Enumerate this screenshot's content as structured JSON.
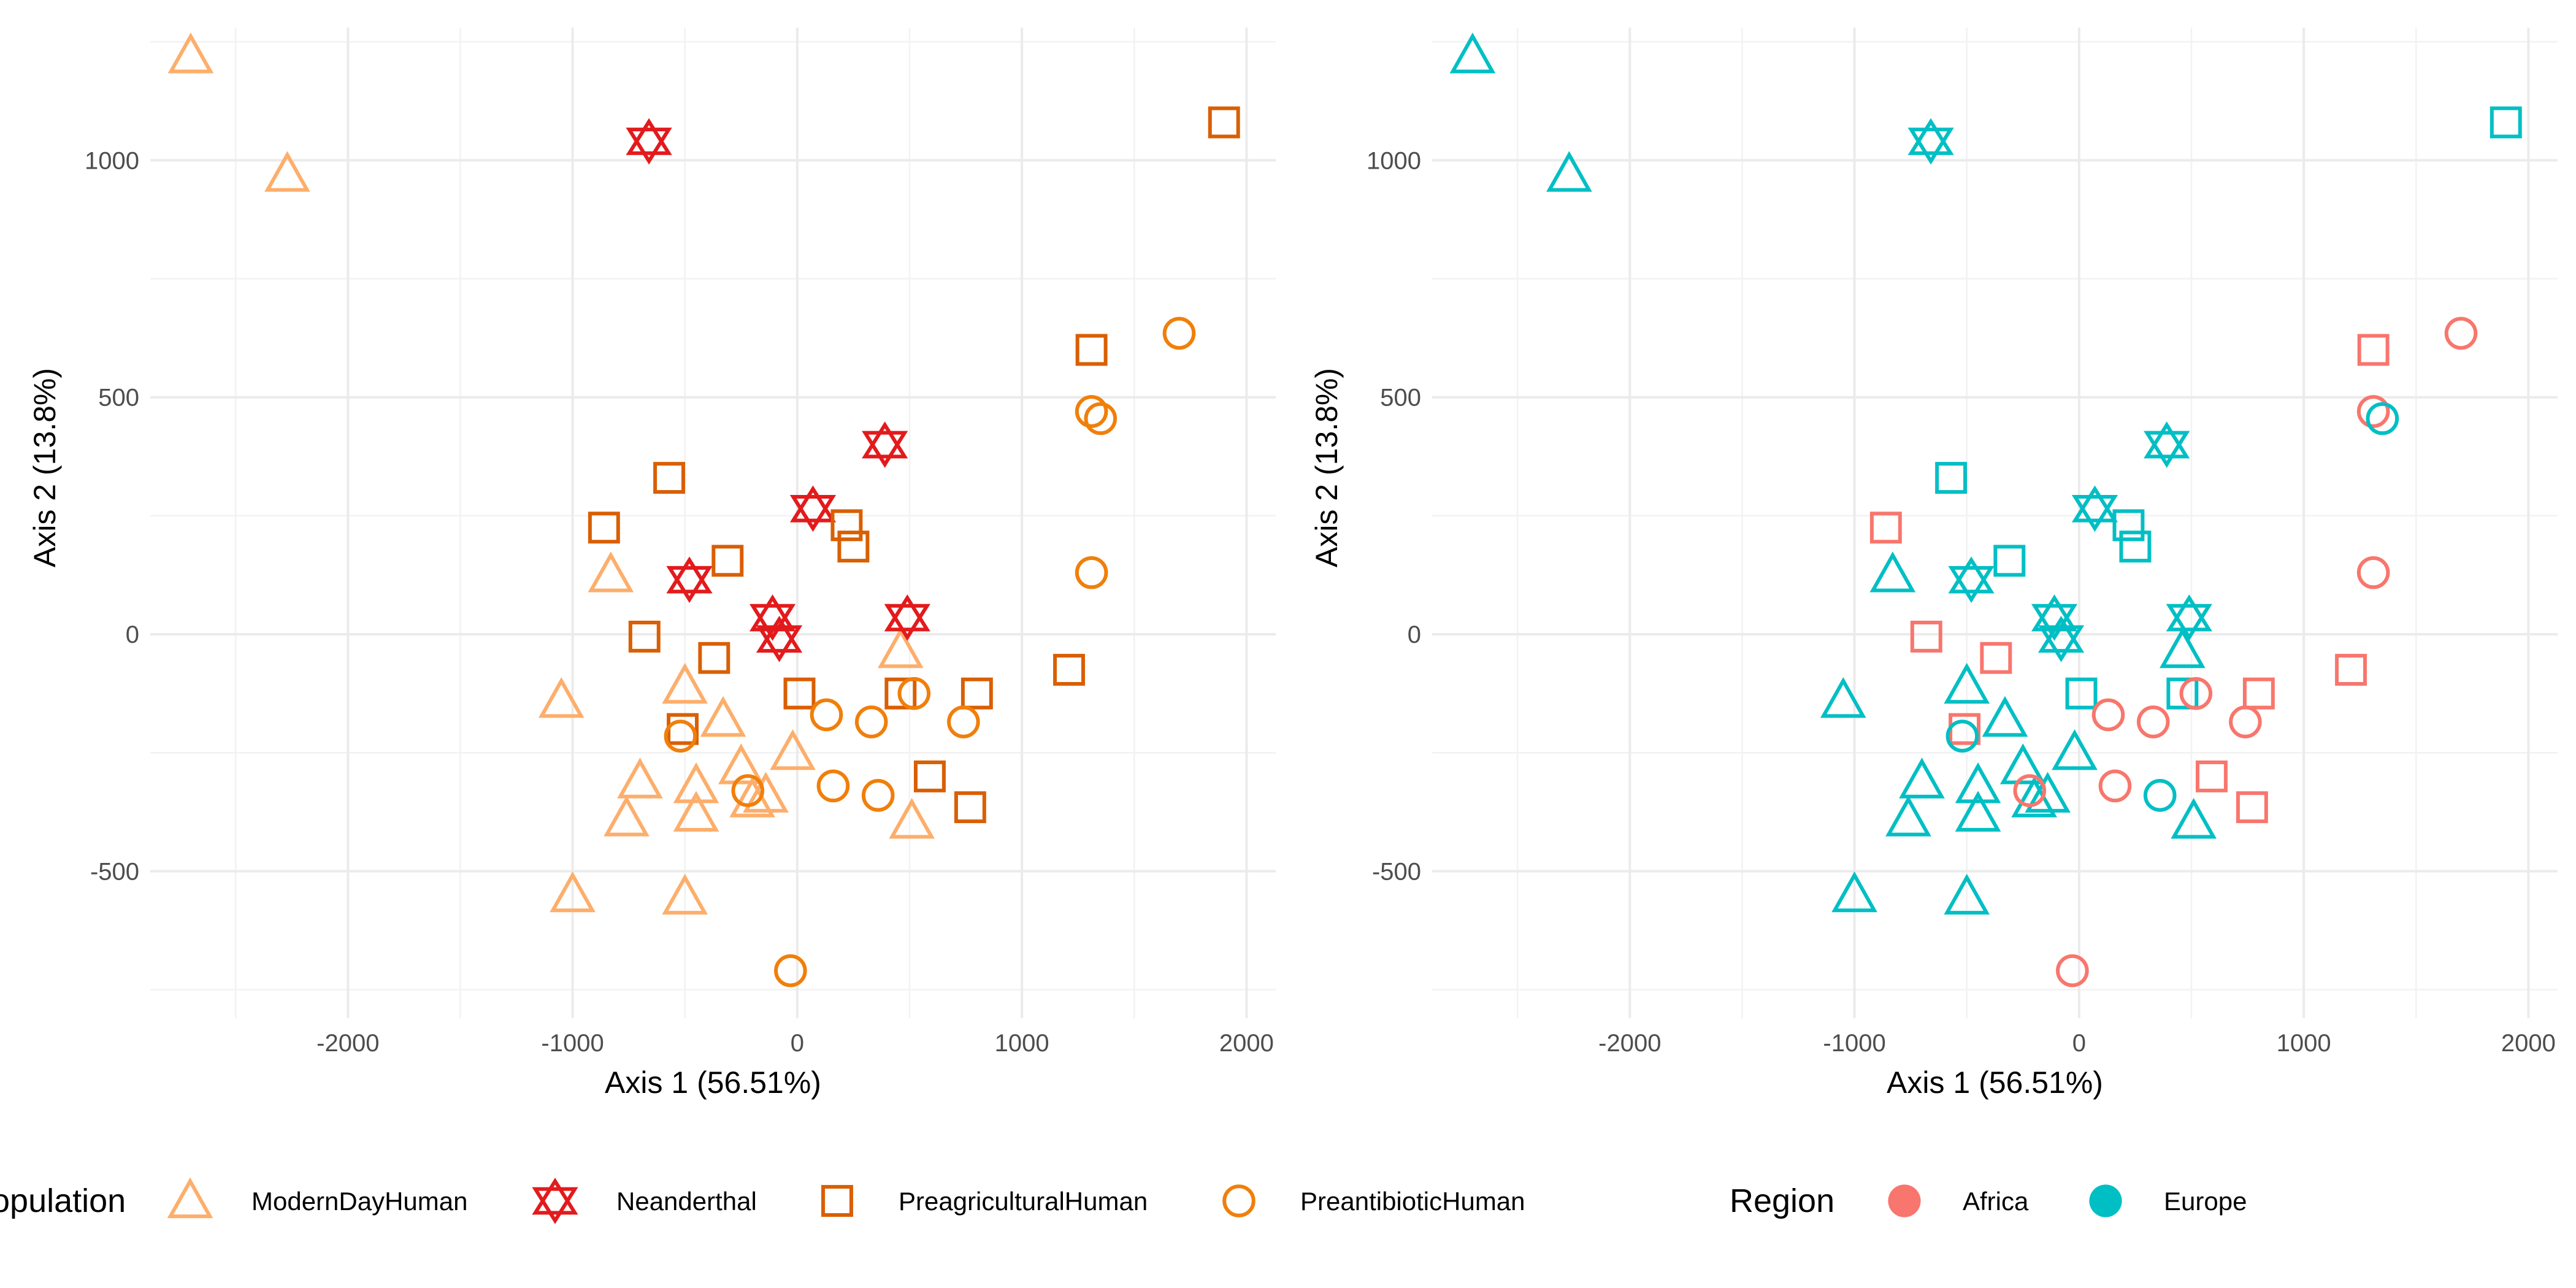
{
  "chart_data": [
    {
      "type": "scatter",
      "xlabel": "Axis 1 (56.51%)",
      "ylabel": "Axis 2 (13.8%)",
      "xlim": [
        -2880,
        2130
      ],
      "ylim": [
        -810,
        1280
      ],
      "xticks": [
        -2000,
        -1000,
        0,
        1000,
        2000
      ],
      "yticks": [
        -500,
        0,
        500,
        1000
      ],
      "grid": true,
      "color_by": "population",
      "shape_by": "population",
      "legend": {
        "title": "Population",
        "position": "bottom",
        "entries": [
          {
            "label": "ModernDayHuman",
            "shape": "triangle",
            "color": "#FDAE6B"
          },
          {
            "label": "Neanderthal",
            "shape": "star6",
            "color": "#E31A1C"
          },
          {
            "label": "PreagriculturalHuman",
            "shape": "square",
            "color": "#D95F02"
          },
          {
            "label": "PreantibioticHuman",
            "shape": "circle",
            "color": "#F07F0B"
          }
        ]
      }
    },
    {
      "type": "scatter",
      "xlabel": "Axis 1 (56.51%)",
      "ylabel": "Axis 2 (13.8%)",
      "xlim": [
        -2880,
        2130
      ],
      "ylim": [
        -810,
        1280
      ],
      "xticks": [
        -2000,
        -1000,
        0,
        1000,
        2000
      ],
      "yticks": [
        -500,
        0,
        500,
        1000
      ],
      "grid": true,
      "color_by": "region",
      "shape_by": "population",
      "legend": {
        "title": "Region",
        "position": "bottom",
        "entries": [
          {
            "label": "Africa",
            "shape": "filled-circle",
            "color": "#F8766D"
          },
          {
            "label": "Europe",
            "shape": "filled-circle",
            "color": "#00BFC4"
          }
        ]
      }
    }
  ],
  "points": [
    {
      "x": -2700,
      "y": 1220,
      "population": "ModernDayHuman",
      "region": "Europe"
    },
    {
      "x": -2270,
      "y": 970,
      "population": "ModernDayHuman",
      "region": "Europe"
    },
    {
      "x": -830,
      "y": 125,
      "population": "ModernDayHuman",
      "region": "Europe"
    },
    {
      "x": -1050,
      "y": -140,
      "population": "ModernDayHuman",
      "region": "Europe"
    },
    {
      "x": -700,
      "y": -310,
      "population": "ModernDayHuman",
      "region": "Europe"
    },
    {
      "x": -760,
      "y": -390,
      "population": "ModernDayHuman",
      "region": "Europe"
    },
    {
      "x": -500,
      "y": -110,
      "population": "ModernDayHuman",
      "region": "Europe"
    },
    {
      "x": -330,
      "y": -180,
      "population": "ModernDayHuman",
      "region": "Europe"
    },
    {
      "x": -450,
      "y": -320,
      "population": "ModernDayHuman",
      "region": "Europe"
    },
    {
      "x": -450,
      "y": -380,
      "population": "ModernDayHuman",
      "region": "Europe"
    },
    {
      "x": -250,
      "y": -280,
      "population": "ModernDayHuman",
      "region": "Europe"
    },
    {
      "x": -200,
      "y": -350,
      "population": "ModernDayHuman",
      "region": "Europe"
    },
    {
      "x": -140,
      "y": -340,
      "population": "ModernDayHuman",
      "region": "Europe"
    },
    {
      "x": -20,
      "y": -250,
      "population": "ModernDayHuman",
      "region": "Europe"
    },
    {
      "x": 460,
      "y": -35,
      "population": "ModernDayHuman",
      "region": "Europe"
    },
    {
      "x": 510,
      "y": -395,
      "population": "ModernDayHuman",
      "region": "Europe"
    },
    {
      "x": -1000,
      "y": -550,
      "population": "ModernDayHuman",
      "region": "Europe"
    },
    {
      "x": -500,
      "y": -555,
      "population": "ModernDayHuman",
      "region": "Europe"
    },
    {
      "x": -660,
      "y": 1040,
      "population": "Neanderthal",
      "region": "Europe"
    },
    {
      "x": 390,
      "y": 400,
      "population": "Neanderthal",
      "region": "Europe"
    },
    {
      "x": 70,
      "y": 265,
      "population": "Neanderthal",
      "region": "Europe"
    },
    {
      "x": -480,
      "y": 115,
      "population": "Neanderthal",
      "region": "Europe"
    },
    {
      "x": -110,
      "y": 35,
      "population": "Neanderthal",
      "region": "Europe"
    },
    {
      "x": -80,
      "y": -10,
      "population": "Neanderthal",
      "region": "Europe"
    },
    {
      "x": 490,
      "y": 35,
      "population": "Neanderthal",
      "region": "Europe"
    },
    {
      "x": 1900,
      "y": 1080,
      "population": "PreagriculturalHuman",
      "region": "Europe"
    },
    {
      "x": 1310,
      "y": 600,
      "population": "PreagriculturalHuman",
      "region": "Africa"
    },
    {
      "x": -570,
      "y": 330,
      "population": "PreagriculturalHuman",
      "region": "Europe"
    },
    {
      "x": -860,
      "y": 225,
      "population": "PreagriculturalHuman",
      "region": "Africa"
    },
    {
      "x": -310,
      "y": 155,
      "population": "PreagriculturalHuman",
      "region": "Europe"
    },
    {
      "x": 220,
      "y": 230,
      "population": "PreagriculturalHuman",
      "region": "Europe"
    },
    {
      "x": 250,
      "y": 185,
      "population": "PreagriculturalHuman",
      "region": "Europe"
    },
    {
      "x": -680,
      "y": -5,
      "population": "PreagriculturalHuman",
      "region": "Africa"
    },
    {
      "x": -370,
      "y": -50,
      "population": "PreagriculturalHuman",
      "region": "Africa"
    },
    {
      "x": 10,
      "y": -125,
      "population": "PreagriculturalHuman",
      "region": "Europe"
    },
    {
      "x": -510,
      "y": -200,
      "population": "PreagriculturalHuman",
      "region": "Africa"
    },
    {
      "x": 460,
      "y": -125,
      "population": "PreagriculturalHuman",
      "region": "Europe"
    },
    {
      "x": 800,
      "y": -125,
      "population": "PreagriculturalHuman",
      "region": "Africa"
    },
    {
      "x": 1210,
      "y": -75,
      "population": "PreagriculturalHuman",
      "region": "Africa"
    },
    {
      "x": 590,
      "y": -300,
      "population": "PreagriculturalHuman",
      "region": "Africa"
    },
    {
      "x": 770,
      "y": -365,
      "population": "PreagriculturalHuman",
      "region": "Africa"
    },
    {
      "x": 1700,
      "y": 635,
      "population": "PreantibioticHuman",
      "region": "Africa"
    },
    {
      "x": 1310,
      "y": 470,
      "population": "PreantibioticHuman",
      "region": "Africa"
    },
    {
      "x": 1350,
      "y": 455,
      "population": "PreantibioticHuman",
      "region": "Europe"
    },
    {
      "x": 1310,
      "y": 130,
      "population": "PreantibioticHuman",
      "region": "Africa"
    },
    {
      "x": 520,
      "y": -125,
      "population": "PreantibioticHuman",
      "region": "Africa"
    },
    {
      "x": 130,
      "y": -170,
      "population": "PreantibioticHuman",
      "region": "Africa"
    },
    {
      "x": 330,
      "y": -185,
      "population": "PreantibioticHuman",
      "region": "Africa"
    },
    {
      "x": 740,
      "y": -185,
      "population": "PreantibioticHuman",
      "region": "Africa"
    },
    {
      "x": -520,
      "y": -215,
      "population": "PreantibioticHuman",
      "region": "Europe"
    },
    {
      "x": -220,
      "y": -330,
      "population": "PreantibioticHuman",
      "region": "Africa"
    },
    {
      "x": 160,
      "y": -320,
      "population": "PreantibioticHuman",
      "region": "Africa"
    },
    {
      "x": 360,
      "y": -340,
      "population": "PreantibioticHuman",
      "region": "Europe"
    },
    {
      "x": -30,
      "y": -710,
      "population": "PreantibioticHuman",
      "region": "Africa"
    }
  ]
}
